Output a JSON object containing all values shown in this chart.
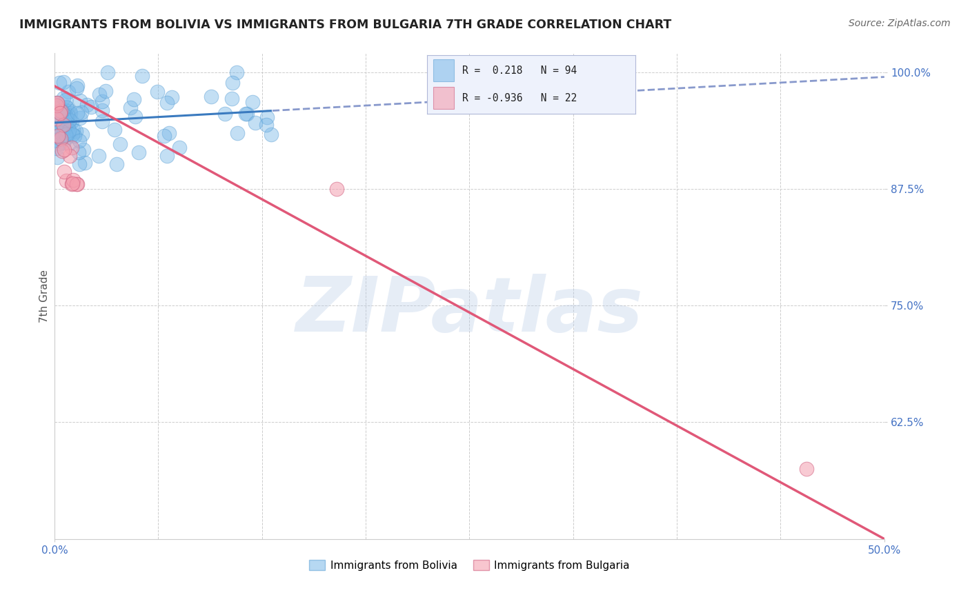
{
  "title": "IMMIGRANTS FROM BOLIVIA VS IMMIGRANTS FROM BULGARIA 7TH GRADE CORRELATION CHART",
  "source": "Source: ZipAtlas.com",
  "ylabel": "7th Grade",
  "watermark": "ZIPatlas",
  "bolivia_color": "#7ab8e8",
  "bolivia_edge": "#5a9fd4",
  "bulgaria_color": "#f4a0b0",
  "bulgaria_edge": "#d06080",
  "bolivia_r": 0.218,
  "bolivia_n": 94,
  "bulgaria_r": -0.936,
  "bulgaria_n": 22,
  "bolivia_line_color": "#3a7abf",
  "bulgaria_line_color": "#e05878",
  "bolivia_line_dashed_color": "#8899cc",
  "xlim": [
    0.0,
    0.5
  ],
  "ylim": [
    0.5,
    1.02
  ],
  "yticks": [
    0.625,
    0.75,
    0.875,
    1.0
  ],
  "ytick_labels": [
    "62.5%",
    "75.0%",
    "87.5%",
    "100.0%"
  ],
  "xticks": [
    0.0,
    0.5
  ],
  "xtick_labels": [
    "0.0%",
    "50.0%"
  ],
  "grid_color": "#cccccc",
  "background_color": "#ffffff",
  "tick_color": "#4472c4",
  "legend_bg": "#eef2fc",
  "legend_edge": "#b0b8d8"
}
